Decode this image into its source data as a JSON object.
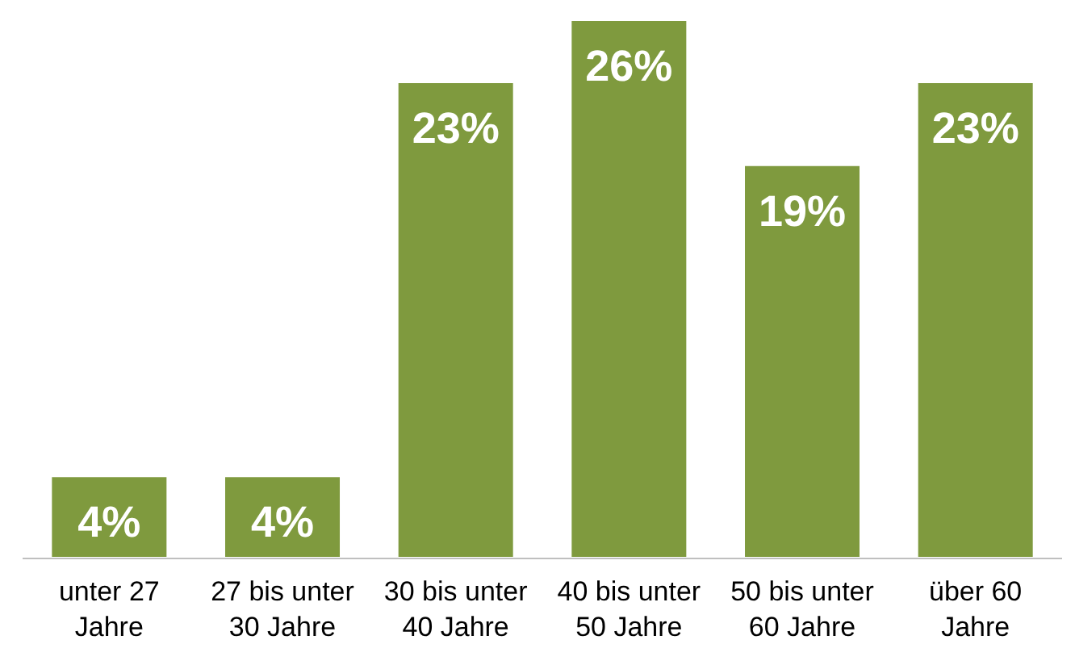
{
  "chart_data": {
    "type": "bar",
    "categories": [
      "unter 27 Jahre",
      "27 bis unter 30 Jahre",
      "30 bis unter 40 Jahre",
      "40 bis unter 50 Jahre",
      "50 bis unter 60 Jahre",
      "über 60 Jahre"
    ],
    "values": [
      4,
      4,
      23,
      26,
      19,
      23
    ],
    "value_labels": [
      "4%",
      "4%",
      "23%",
      "26%",
      "19%",
      "23%"
    ],
    "color": "#7f9a3e"
  }
}
